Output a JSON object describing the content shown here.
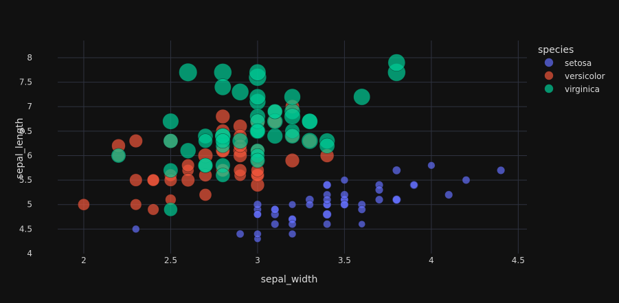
{
  "chart_data": {
    "type": "scatter",
    "xlabel": "sepal_width",
    "ylabel": "sepal_length",
    "xlim": [
      1.85,
      4.55
    ],
    "ylim": [
      4.0,
      8.35
    ],
    "x_ticks": [
      "2",
      "2.5",
      "3",
      "3.5",
      "4",
      "4.5"
    ],
    "x_tick_values": [
      2,
      2.5,
      3,
      3.5,
      4,
      4.5
    ],
    "y_ticks": [
      "4",
      "4.5",
      "5",
      "5.5",
      "6",
      "6.5",
      "7",
      "7.5",
      "8"
    ],
    "y_tick_values": [
      4,
      4.5,
      5,
      5.5,
      6,
      6.5,
      7,
      7.5,
      8
    ],
    "grid": true,
    "legend_title": "species",
    "legend_position": "top-right",
    "size_encoding": "petal_length",
    "series": [
      {
        "name": "setosa",
        "color": "#636efa",
        "points": [
          [
            3.5,
            5.1,
            1.4
          ],
          [
            3.0,
            4.9,
            1.4
          ],
          [
            3.2,
            4.7,
            1.3
          ],
          [
            3.1,
            4.6,
            1.5
          ],
          [
            3.6,
            5.0,
            1.4
          ],
          [
            3.9,
            5.4,
            1.7
          ],
          [
            3.4,
            4.6,
            1.4
          ],
          [
            3.4,
            5.0,
            1.5
          ],
          [
            2.9,
            4.4,
            1.4
          ],
          [
            3.1,
            4.9,
            1.5
          ],
          [
            3.7,
            5.4,
            1.5
          ],
          [
            3.4,
            4.8,
            1.6
          ],
          [
            3.0,
            4.8,
            1.4
          ],
          [
            3.0,
            4.3,
            1.1
          ],
          [
            4.0,
            5.8,
            1.2
          ],
          [
            4.4,
            5.7,
            1.5
          ],
          [
            3.9,
            5.4,
            1.3
          ],
          [
            3.5,
            5.1,
            1.4
          ],
          [
            3.8,
            5.7,
            1.7
          ],
          [
            3.8,
            5.1,
            1.5
          ],
          [
            3.4,
            5.4,
            1.7
          ],
          [
            3.7,
            5.1,
            1.5
          ],
          [
            3.6,
            4.6,
            1.0
          ],
          [
            3.3,
            5.1,
            1.7
          ],
          [
            3.4,
            4.8,
            1.9
          ],
          [
            3.0,
            5.0,
            1.6
          ],
          [
            3.4,
            5.0,
            1.6
          ],
          [
            3.5,
            5.2,
            1.5
          ],
          [
            3.4,
            5.2,
            1.4
          ],
          [
            3.2,
            4.7,
            1.6
          ],
          [
            3.1,
            4.8,
            1.6
          ],
          [
            3.4,
            5.4,
            1.5
          ],
          [
            4.1,
            5.2,
            1.5
          ],
          [
            4.2,
            5.5,
            1.4
          ],
          [
            3.1,
            4.9,
            1.5
          ],
          [
            3.2,
            5.0,
            1.2
          ],
          [
            3.5,
            5.5,
            1.3
          ],
          [
            3.6,
            4.9,
            1.4
          ],
          [
            3.0,
            4.4,
            1.3
          ],
          [
            3.4,
            5.1,
            1.5
          ],
          [
            3.5,
            5.0,
            1.3
          ],
          [
            2.3,
            4.5,
            1.3
          ],
          [
            3.2,
            4.4,
            1.3
          ],
          [
            3.5,
            5.0,
            1.6
          ],
          [
            3.8,
            5.1,
            1.9
          ],
          [
            3.0,
            4.8,
            1.4
          ],
          [
            3.8,
            5.1,
            1.6
          ],
          [
            3.2,
            4.6,
            1.4
          ],
          [
            3.7,
            5.3,
            1.5
          ],
          [
            3.3,
            5.0,
            1.4
          ]
        ]
      },
      {
        "name": "versicolor",
        "color": "#ef553b",
        "points": [
          [
            3.2,
            7.0,
            4.7
          ],
          [
            3.2,
            6.4,
            4.5
          ],
          [
            3.1,
            6.9,
            4.9
          ],
          [
            2.3,
            5.5,
            4.0
          ],
          [
            2.8,
            6.5,
            4.6
          ],
          [
            2.8,
            5.7,
            4.5
          ],
          [
            3.3,
            6.3,
            4.7
          ],
          [
            2.4,
            4.9,
            3.3
          ],
          [
            2.9,
            6.6,
            4.6
          ],
          [
            2.7,
            5.2,
            3.9
          ],
          [
            2.0,
            5.0,
            3.5
          ],
          [
            3.0,
            5.9,
            4.2
          ],
          [
            2.2,
            6.0,
            4.0
          ],
          [
            2.9,
            6.1,
            4.7
          ],
          [
            2.9,
            5.6,
            3.6
          ],
          [
            3.1,
            6.7,
            4.4
          ],
          [
            3.0,
            5.6,
            4.5
          ],
          [
            2.7,
            5.8,
            4.1
          ],
          [
            2.2,
            6.2,
            4.5
          ],
          [
            2.5,
            5.6,
            3.9
          ],
          [
            3.2,
            5.9,
            4.8
          ],
          [
            2.8,
            6.1,
            4.0
          ],
          [
            2.5,
            6.3,
            4.9
          ],
          [
            2.8,
            6.1,
            4.7
          ],
          [
            2.9,
            6.4,
            4.3
          ],
          [
            3.0,
            6.6,
            4.4
          ],
          [
            2.8,
            6.8,
            4.8
          ],
          [
            3.0,
            6.7,
            5.0
          ],
          [
            2.9,
            6.0,
            4.5
          ],
          [
            2.6,
            5.7,
            3.5
          ],
          [
            2.4,
            5.5,
            3.8
          ],
          [
            2.4,
            5.5,
            3.7
          ],
          [
            2.7,
            5.8,
            3.9
          ],
          [
            2.7,
            6.0,
            5.1
          ],
          [
            3.0,
            5.4,
            4.5
          ],
          [
            3.4,
            6.0,
            4.5
          ],
          [
            3.1,
            6.7,
            4.7
          ],
          [
            2.3,
            6.3,
            4.4
          ],
          [
            3.0,
            5.6,
            4.1
          ],
          [
            2.5,
            5.5,
            4.0
          ],
          [
            2.6,
            5.5,
            4.4
          ],
          [
            3.0,
            6.1,
            4.6
          ],
          [
            2.6,
            5.8,
            4.0
          ],
          [
            2.3,
            5.0,
            3.3
          ],
          [
            2.7,
            5.6,
            4.2
          ],
          [
            3.0,
            5.7,
            4.2
          ],
          [
            2.9,
            5.7,
            4.2
          ],
          [
            2.9,
            6.2,
            4.3
          ],
          [
            2.5,
            5.1,
            3.0
          ],
          [
            2.8,
            5.7,
            4.1
          ]
        ]
      },
      {
        "name": "virginica",
        "color": "#00cc96",
        "points": [
          [
            3.3,
            6.3,
            6.0
          ],
          [
            2.7,
            5.8,
            5.1
          ],
          [
            3.0,
            7.1,
            5.9
          ],
          [
            2.9,
            6.3,
            5.6
          ],
          [
            3.0,
            6.5,
            5.8
          ],
          [
            3.0,
            7.6,
            6.6
          ],
          [
            2.5,
            4.9,
            4.5
          ],
          [
            2.9,
            7.3,
            6.3
          ],
          [
            2.5,
            6.7,
            5.8
          ],
          [
            3.6,
            7.2,
            6.1
          ],
          [
            3.2,
            6.5,
            5.1
          ],
          [
            2.7,
            6.4,
            5.3
          ],
          [
            3.0,
            6.8,
            5.5
          ],
          [
            2.5,
            5.7,
            5.0
          ],
          [
            2.8,
            5.8,
            5.1
          ],
          [
            3.2,
            6.4,
            5.3
          ],
          [
            3.0,
            6.5,
            5.5
          ],
          [
            3.8,
            7.7,
            6.7
          ],
          [
            2.6,
            7.7,
            6.9
          ],
          [
            2.2,
            6.0,
            5.0
          ],
          [
            3.2,
            6.9,
            5.7
          ],
          [
            2.8,
            5.6,
            4.9
          ],
          [
            2.8,
            7.7,
            6.7
          ],
          [
            2.7,
            6.3,
            4.9
          ],
          [
            3.3,
            6.7,
            5.7
          ],
          [
            3.2,
            7.2,
            6.0
          ],
          [
            2.8,
            6.2,
            4.8
          ],
          [
            3.0,
            6.1,
            4.9
          ],
          [
            2.8,
            6.4,
            5.6
          ],
          [
            3.0,
            7.2,
            5.8
          ],
          [
            2.8,
            7.4,
            6.1
          ],
          [
            3.8,
            7.9,
            6.4
          ],
          [
            2.8,
            6.4,
            5.6
          ],
          [
            2.8,
            6.3,
            5.1
          ],
          [
            2.6,
            6.1,
            5.6
          ],
          [
            3.0,
            7.7,
            6.1
          ],
          [
            3.4,
            6.3,
            5.6
          ],
          [
            3.1,
            6.4,
            5.5
          ],
          [
            3.0,
            6.0,
            4.8
          ],
          [
            3.1,
            6.9,
            5.4
          ],
          [
            3.1,
            6.7,
            5.6
          ],
          [
            3.1,
            6.9,
            5.1
          ],
          [
            2.7,
            5.8,
            5.1
          ],
          [
            3.2,
            6.8,
            5.9
          ],
          [
            3.3,
            6.7,
            5.7
          ],
          [
            3.0,
            6.7,
            5.2
          ],
          [
            2.5,
            6.3,
            5.0
          ],
          [
            3.0,
            6.5,
            5.2
          ],
          [
            3.4,
            6.2,
            5.4
          ],
          [
            3.0,
            5.9,
            5.1
          ]
        ]
      }
    ]
  }
}
